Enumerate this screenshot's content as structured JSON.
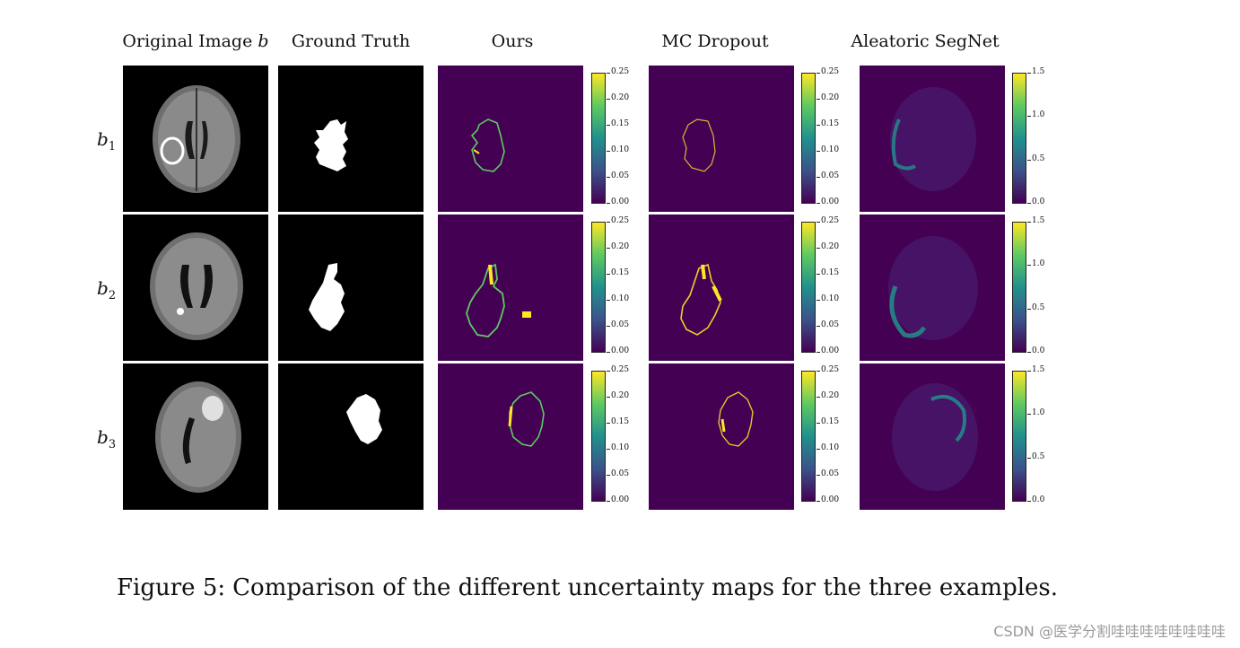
{
  "columns": {
    "original": "Original Image",
    "original_var": "b",
    "ground_truth": "Ground Truth",
    "ours": "Ours",
    "mc_dropout": "MC Dropout",
    "aleatoric": "Aleatoric SegNet"
  },
  "rows": [
    {
      "base": "b",
      "sub": "1"
    },
    {
      "base": "b",
      "sub": "2"
    },
    {
      "base": "b",
      "sub": "3"
    }
  ],
  "colorbars": {
    "ours_ticks": [
      "0.25",
      "0.20",
      "0.15",
      "0.10",
      "0.05",
      "0.00"
    ],
    "mc_ticks": [
      "0.25",
      "0.20",
      "0.15",
      "0.10",
      "0.05",
      "0.00"
    ],
    "aleatoric_ticks": [
      "1.5",
      "1.0",
      "0.5",
      "0.0"
    ],
    "colormap": [
      "#440154",
      "#3b528b",
      "#21918c",
      "#5ec962",
      "#fde725"
    ]
  },
  "caption": {
    "prefix": "Figure 5:",
    "text": "Comparison of the different uncertainty maps for the three examples."
  },
  "watermark": "CSDN @医学分割哇哇哇哇哇哇哇哇"
}
